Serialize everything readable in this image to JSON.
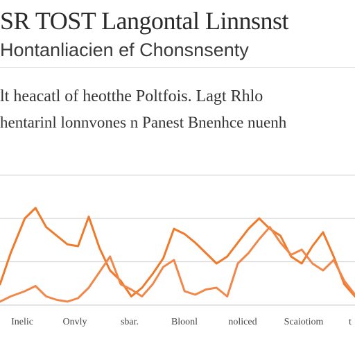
{
  "header": {
    "title": "SR TOST Langontal Linnsnst",
    "subtitle": "Hontanliacien ef Chonsnsenty",
    "caption_line1": "lt heacatl of heotthe Poltfois. Lagt Rhlo",
    "caption_line2": "hentarinl lonnvones n Panest Bnenhce nuenh"
  },
  "chart_data": {
    "type": "line",
    "title": "SR TOST Langontal Linnsnst",
    "subtitle": "Hontanliacien ef Chonsnsenty",
    "xlabel": "",
    "ylabel": "",
    "categories": [
      "Inelic",
      "Onvly",
      "sbar.",
      "Bloonl",
      "noliced",
      "Scaiotiom",
      "t"
    ],
    "x": [
      0,
      3,
      7,
      10,
      13,
      16,
      19,
      22,
      25,
      28,
      31,
      34,
      37,
      40,
      43,
      46,
      49,
      52,
      55,
      58,
      61,
      64,
      67,
      70,
      73,
      76,
      79,
      82,
      85,
      88,
      91,
      94,
      97,
      100
    ],
    "ylim": [
      0,
      100
    ],
    "grid": true,
    "series": [
      {
        "color": "#f07a2a",
        "values": [
          12,
          30,
          50,
          56,
          45,
          40,
          35,
          34,
          51,
          33,
          20,
          14,
          5,
          10,
          18,
          27,
          44,
          41,
          36,
          30,
          24,
          28,
          36,
          44,
          50,
          44,
          40,
          28,
          24,
          34,
          42,
          28,
          12,
          5
        ]
      },
      {
        "color": "#f2874a",
        "values": [
          2,
          5,
          8,
          11,
          5,
          3,
          2,
          4,
          10,
          19,
          28,
          12,
          9,
          5,
          12,
          22,
          26,
          8,
          6,
          9,
          10,
          5,
          24,
          30,
          38,
          45,
          36,
          29,
          32,
          24,
          20,
          26,
          14,
          6
        ]
      }
    ]
  }
}
